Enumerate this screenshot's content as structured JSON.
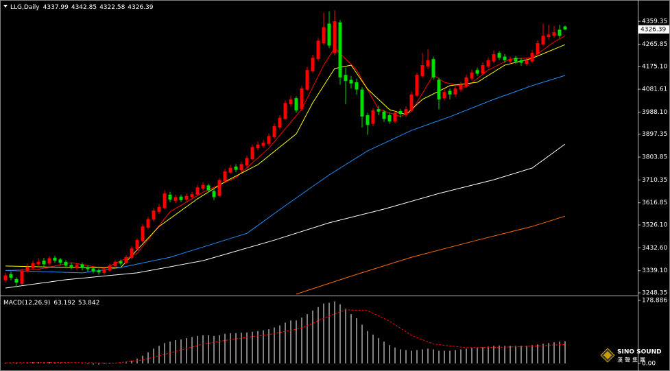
{
  "chart_data": {
    "type": "candlestick",
    "symbol": "LLG,Daily",
    "up_color": "#ff0000",
    "down_color": "#00e000",
    "xlim": [
      -1,
      115.25
    ],
    "ylim": [
      3240,
      4441
    ],
    "yticks": [
      4359.35,
      4265.85,
      {
        "value": 4175.1,
        "label": "4175.10"
      },
      4081.61,
      {
        "value": 3988.1,
        "label": "3988.10"
      },
      3897.35,
      3803.85,
      3710.35,
      3616.85,
      {
        "value": 3526.1,
        "label": "3526.10"
      },
      {
        "value": 3432.6,
        "label": "3432.60"
      },
      {
        "value": 3339.1,
        "label": "3339.10"
      },
      3248.35
    ],
    "open": [
      3300,
      3325,
      3305,
      3285,
      3335,
      3350,
      3365,
      3380,
      3368,
      3392,
      3385,
      3375,
      3362,
      3350,
      3365,
      3352,
      3348,
      3340,
      3330,
      3340,
      3358,
      3378,
      3370,
      3392,
      3428,
      3460,
      3515,
      3548,
      3580,
      3595,
      3650,
      3625,
      3642,
      3630,
      3640,
      3650,
      3675,
      3688,
      3665,
      3645,
      3705,
      3740,
      3765,
      3750,
      3770,
      3795,
      3840,
      3850,
      3858,
      3885,
      3925,
      3960,
      4020,
      4045,
      4000,
      4080,
      4155,
      4205,
      4270,
      4350,
      4230,
      4355,
      4140,
      4120,
      4110,
      4080,
      3975,
      3940,
      4000,
      3990,
      3975,
      3950,
      3992,
      3975,
      3995,
      4055,
      4135,
      4175,
      4205,
      4120,
      4045,
      4075,
      4060,
      4080,
      4095,
      4125,
      4160,
      4145,
      4175,
      4195,
      4230,
      4215,
      4195,
      4210,
      4200,
      4185,
      4195,
      4225,
      4265,
      4295,
      4300,
      4325,
      4337.99
    ],
    "high": [
      3330,
      3335,
      3312,
      3348,
      3368,
      3380,
      3390,
      3392,
      3398,
      3400,
      3392,
      3382,
      3372,
      3370,
      3372,
      3360,
      3355,
      3348,
      3352,
      3368,
      3382,
      3385,
      3402,
      3440,
      3472,
      3530,
      3560,
      3595,
      3612,
      3668,
      3662,
      3650,
      3650,
      3655,
      3662,
      3690,
      3702,
      3695,
      3672,
      3718,
      3755,
      3772,
      3775,
      3785,
      3810,
      3855,
      3868,
      3875,
      3900,
      3942,
      3975,
      4035,
      4055,
      4052,
      4095,
      4172,
      4222,
      4292,
      4395,
      4400,
      4405,
      4365,
      4170,
      4135,
      4125,
      4090,
      3985,
      4005,
      4015,
      3998,
      3985,
      3995,
      4000,
      4012,
      4072,
      4150,
      4230,
      4245,
      4215,
      4128,
      4082,
      4085,
      4095,
      4112,
      4140,
      4162,
      4170,
      4192,
      4212,
      4240,
      4238,
      4225,
      4215,
      4218,
      4210,
      4212,
      4242,
      4282,
      4350,
      4345,
      4340,
      4345,
      4342.85
    ],
    "low": [
      3290,
      3300,
      3272,
      3280,
      3330,
      3342,
      3358,
      3355,
      3360,
      3372,
      3362,
      3350,
      3345,
      3342,
      3340,
      3335,
      3328,
      3322,
      3322,
      3335,
      3350,
      3360,
      3365,
      3385,
      3420,
      3455,
      3508,
      3540,
      3572,
      3590,
      3620,
      3615,
      3620,
      3622,
      3632,
      3645,
      3668,
      3660,
      3628,
      3640,
      3700,
      3735,
      3742,
      3742,
      3762,
      3790,
      3832,
      3842,
      3850,
      3878,
      3918,
      3955,
      4010,
      3985,
      3992,
      4075,
      4148,
      4198,
      4262,
      4250,
      4220,
      4100,
      4020,
      4085,
      4060,
      3925,
      3895,
      3930,
      3975,
      3948,
      3940,
      3942,
      3965,
      3968,
      3990,
      4050,
      4128,
      4165,
      4120,
      4000,
      4035,
      4040,
      4050,
      4072,
      4088,
      4118,
      4135,
      4138,
      4168,
      4188,
      4200,
      4190,
      4185,
      4185,
      4178,
      4178,
      4188,
      4218,
      4258,
      4285,
      4292,
      4290,
      4322.58
    ],
    "close": [
      3320,
      3310,
      3290,
      3340,
      3355,
      3370,
      3375,
      3365,
      3390,
      3380,
      3372,
      3360,
      3355,
      3362,
      3350,
      3345,
      3338,
      3332,
      3345,
      3360,
      3375,
      3368,
      3395,
      3430,
      3465,
      3520,
      3550,
      3585,
      3600,
      3655,
      3630,
      3640,
      3628,
      3645,
      3652,
      3680,
      3690,
      3668,
      3640,
      3710,
      3745,
      3760,
      3752,
      3775,
      3800,
      3845,
      3855,
      3862,
      3890,
      3930,
      3965,
      4025,
      4040,
      3995,
      4085,
      4160,
      4210,
      4280,
      4335,
      4260,
      4360,
      4130,
      4115,
      4105,
      4080,
      3970,
      3935,
      3995,
      3990,
      3960,
      3950,
      3985,
      3980,
      4000,
      4060,
      4140,
      4180,
      4200,
      4130,
      4040,
      4070,
      4060,
      4085,
      4100,
      4130,
      4150,
      4145,
      4180,
      4200,
      4225,
      4210,
      4200,
      4205,
      4195,
      4190,
      4200,
      4230,
      4270,
      4300,
      4305,
      4315,
      4300,
      4326.39
    ],
    "moving_averages": [
      {
        "color": "#ff0000",
        "x": [
          0,
          6,
          12,
          18,
          24,
          30,
          36,
          42,
          48,
          54,
          58,
          60,
          64,
          68,
          72,
          74,
          78,
          80,
          84,
          88,
          92,
          96,
          100,
          102
        ],
        "values": [
          3340,
          3345,
          3372,
          3348,
          3410,
          3580,
          3660,
          3720,
          3840,
          4000,
          4180,
          4250,
          4160,
          4000,
          3970,
          3990,
          4140,
          4110,
          4090,
          4160,
          4205,
          4210,
          4275,
          4300
        ]
      },
      {
        "color": "#ffff00",
        "x": [
          0,
          12,
          21,
          28,
          35,
          40,
          46,
          53,
          56,
          60,
          63,
          66,
          70,
          73,
          76,
          81,
          86,
          91,
          96,
          102
        ],
        "values": [
          3358,
          3352,
          3352,
          3520,
          3633,
          3703,
          3773,
          3899,
          4026,
          4166,
          4180,
          4082,
          3998,
          3978,
          4040,
          4096,
          4110,
          4180,
          4208,
          4264
        ]
      },
      {
        "color": "#1e90ff",
        "x": [
          0,
          14,
          21,
          30,
          36,
          44,
          51,
          59,
          66,
          74,
          81,
          89,
          96,
          102
        ],
        "values": [
          3340,
          3330,
          3352,
          3394,
          3436,
          3492,
          3605,
          3731,
          3829,
          3913,
          3969,
          4040,
          4096,
          4138
        ]
      },
      {
        "color": "#ffffff",
        "x": [
          0,
          11,
          24,
          36,
          49,
          59,
          69,
          79,
          89,
          96,
          102
        ],
        "values": [
          3268,
          3302,
          3330,
          3380,
          3464,
          3535,
          3591,
          3655,
          3711,
          3759,
          3857
        ]
      },
      {
        "color": "#ff6a00",
        "x": [
          53,
          64,
          74,
          86,
          96,
          102
        ],
        "values": [
          3243,
          3324,
          3394,
          3464,
          3520,
          3562
        ]
      }
    ],
    "macd": {
      "title": "MACD(12,26,9)",
      "bar_color": "#ffffff",
      "ylim": [
        -15.5,
        188.6
      ],
      "yticks": [
        178.886,
        {
          "value": 0,
          "label": "0.00"
        }
      ],
      "values": [
        2,
        1,
        -2,
        1,
        3,
        4,
        4,
        3,
        4,
        3,
        2,
        1,
        0,
        0,
        -1,
        -2,
        -3,
        -3,
        -2,
        -1,
        0,
        1,
        3,
        8,
        14,
        22,
        32,
        42,
        50,
        58,
        62,
        66,
        68,
        72,
        75,
        78,
        80,
        80,
        78,
        80,
        84,
        86,
        86,
        87,
        88,
        90,
        92,
        94,
        97,
        102,
        108,
        116,
        122,
        122,
        130,
        140,
        150,
        160,
        170,
        172,
        176,
        168,
        155,
        140,
        128,
        110,
        92,
        82,
        72,
        62,
        52,
        45,
        40,
        38,
        36,
        38,
        40,
        42,
        40,
        36,
        36,
        36,
        38,
        40,
        42,
        44,
        44,
        46,
        48,
        50,
        51,
        50,
        50,
        50,
        50,
        50,
        52,
        54,
        56,
        58,
        60,
        62,
        63.192
      ],
      "signal": {
        "color": "#ff0000",
        "x": [
          0,
          10,
          20,
          25,
          30,
          36,
          42,
          48,
          54,
          58,
          62,
          66,
          70,
          74,
          78,
          84,
          90,
          96,
          102
        ],
        "values": [
          2,
          3,
          1,
          10,
          30,
          55,
          70,
          82,
          100,
          128,
          152,
          150,
          120,
          80,
          55,
          45,
          46,
          49,
          53.842
        ]
      }
    }
  },
  "logo": {
    "name": "SINO SOUND",
    "subtitle": "漢聲集團"
  }
}
